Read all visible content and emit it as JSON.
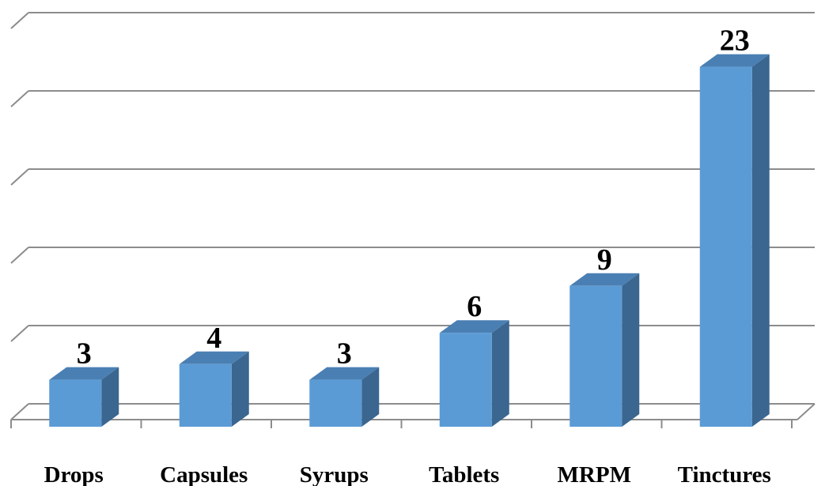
{
  "chart_data": {
    "type": "bar",
    "categories": [
      "Drops",
      "Capsules",
      "Syrups",
      "Tablets",
      "MRPM",
      "Tinctures"
    ],
    "values": [
      3,
      4,
      3,
      6,
      9,
      23
    ],
    "data_labels": [
      "3",
      "4",
      "3",
      "6",
      "9",
      "23"
    ],
    "ylim": [
      0,
      25
    ],
    "gridline_step": 5,
    "grid": true,
    "style": "3d-column",
    "colors": {
      "front": "#5b9bd5",
      "side": "#3a6690",
      "top": "#4a7fb3",
      "grid": "#8c8c8c"
    }
  }
}
